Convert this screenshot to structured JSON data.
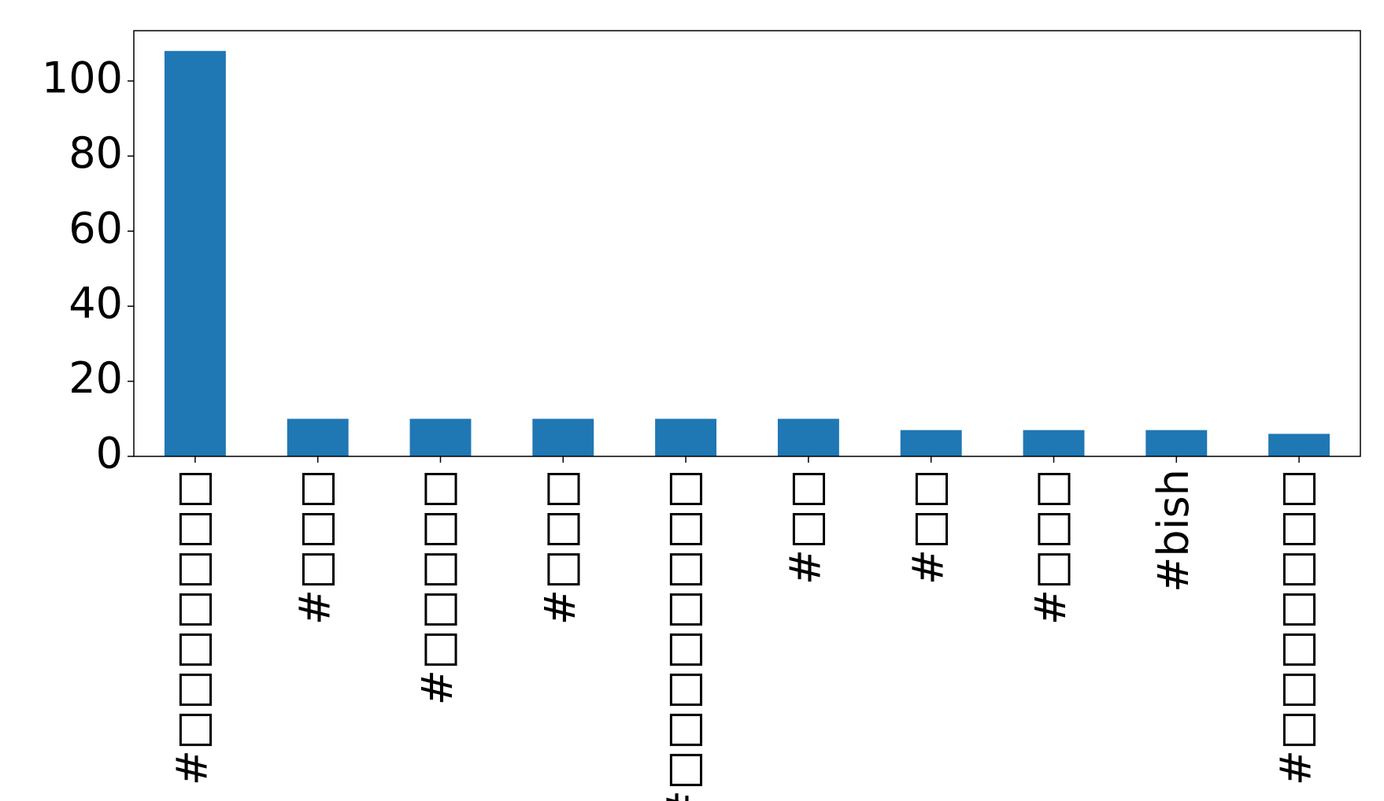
{
  "chart_data": {
    "type": "bar",
    "categories": [
      "#□□□□□□□",
      "#□□□",
      "#□□□□□",
      "#□□□",
      "#□□□□□□□□",
      "#□□",
      "#□□",
      "#□□□",
      "#bish",
      "#□□□□□□□"
    ],
    "values": [
      108,
      10,
      10,
      10,
      10,
      10,
      7,
      7,
      7,
      6
    ],
    "color": "#1f77b4",
    "ylim": [
      0,
      113.4
    ],
    "yticks": [
      0,
      20,
      40,
      60,
      80,
      100
    ],
    "grid": false
  }
}
